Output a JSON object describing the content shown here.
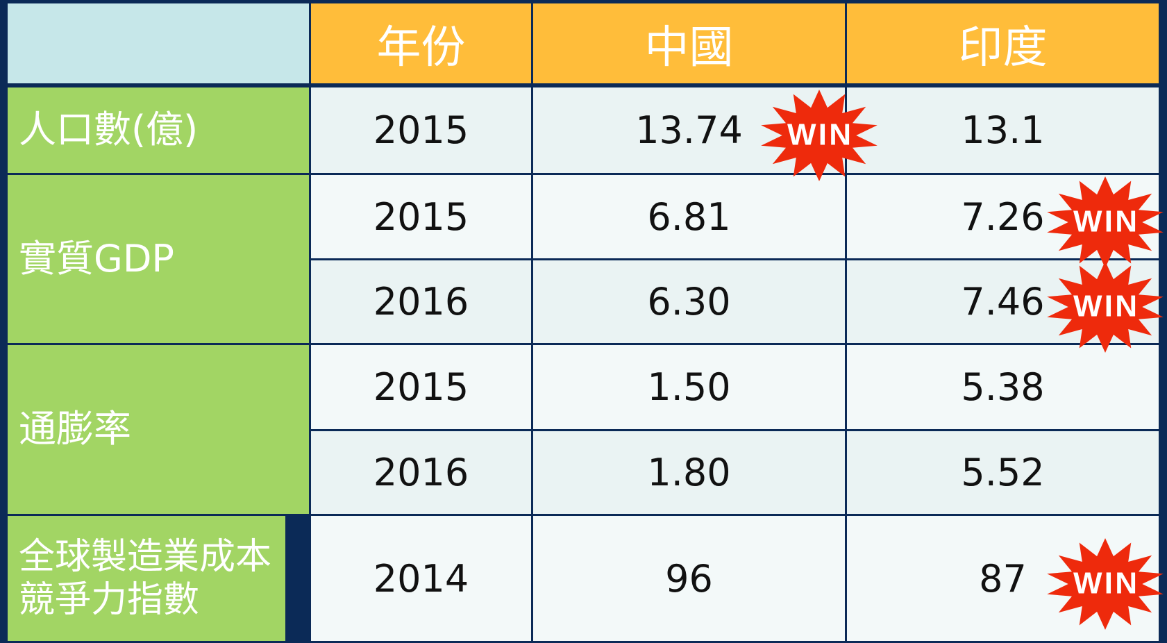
{
  "table": {
    "header": [
      "年份",
      "中國",
      "印度"
    ],
    "groups": [
      {
        "label": "人口數(億)",
        "rows": [
          {
            "year": "2015",
            "cells": [
              "13.74",
              "13.1"
            ],
            "badges": [
              "WIN",
              null
            ]
          }
        ]
      },
      {
        "label": "實質GDP",
        "rows": [
          {
            "year": "2015",
            "cells": [
              "6.81",
              "7.26"
            ],
            "badges": [
              null,
              "WIN"
            ]
          },
          {
            "year": "2016",
            "cells": [
              "6.30",
              "7.46"
            ],
            "badges": [
              null,
              "WIN"
            ]
          }
        ]
      },
      {
        "label": "通膨率",
        "rows": [
          {
            "year": "2015",
            "cells": [
              "1.50",
              "5.38"
            ],
            "badges": [
              null,
              null
            ]
          },
          {
            "year": "2016",
            "cells": [
              "1.80",
              "5.52"
            ],
            "badges": [
              null,
              null
            ]
          }
        ]
      },
      {
        "label": "全球製造業成本競爭力指數",
        "rows": [
          {
            "year": "2014",
            "cells": [
              "96",
              "87"
            ],
            "badges": [
              null,
              "WIN"
            ]
          }
        ]
      }
    ]
  }
}
